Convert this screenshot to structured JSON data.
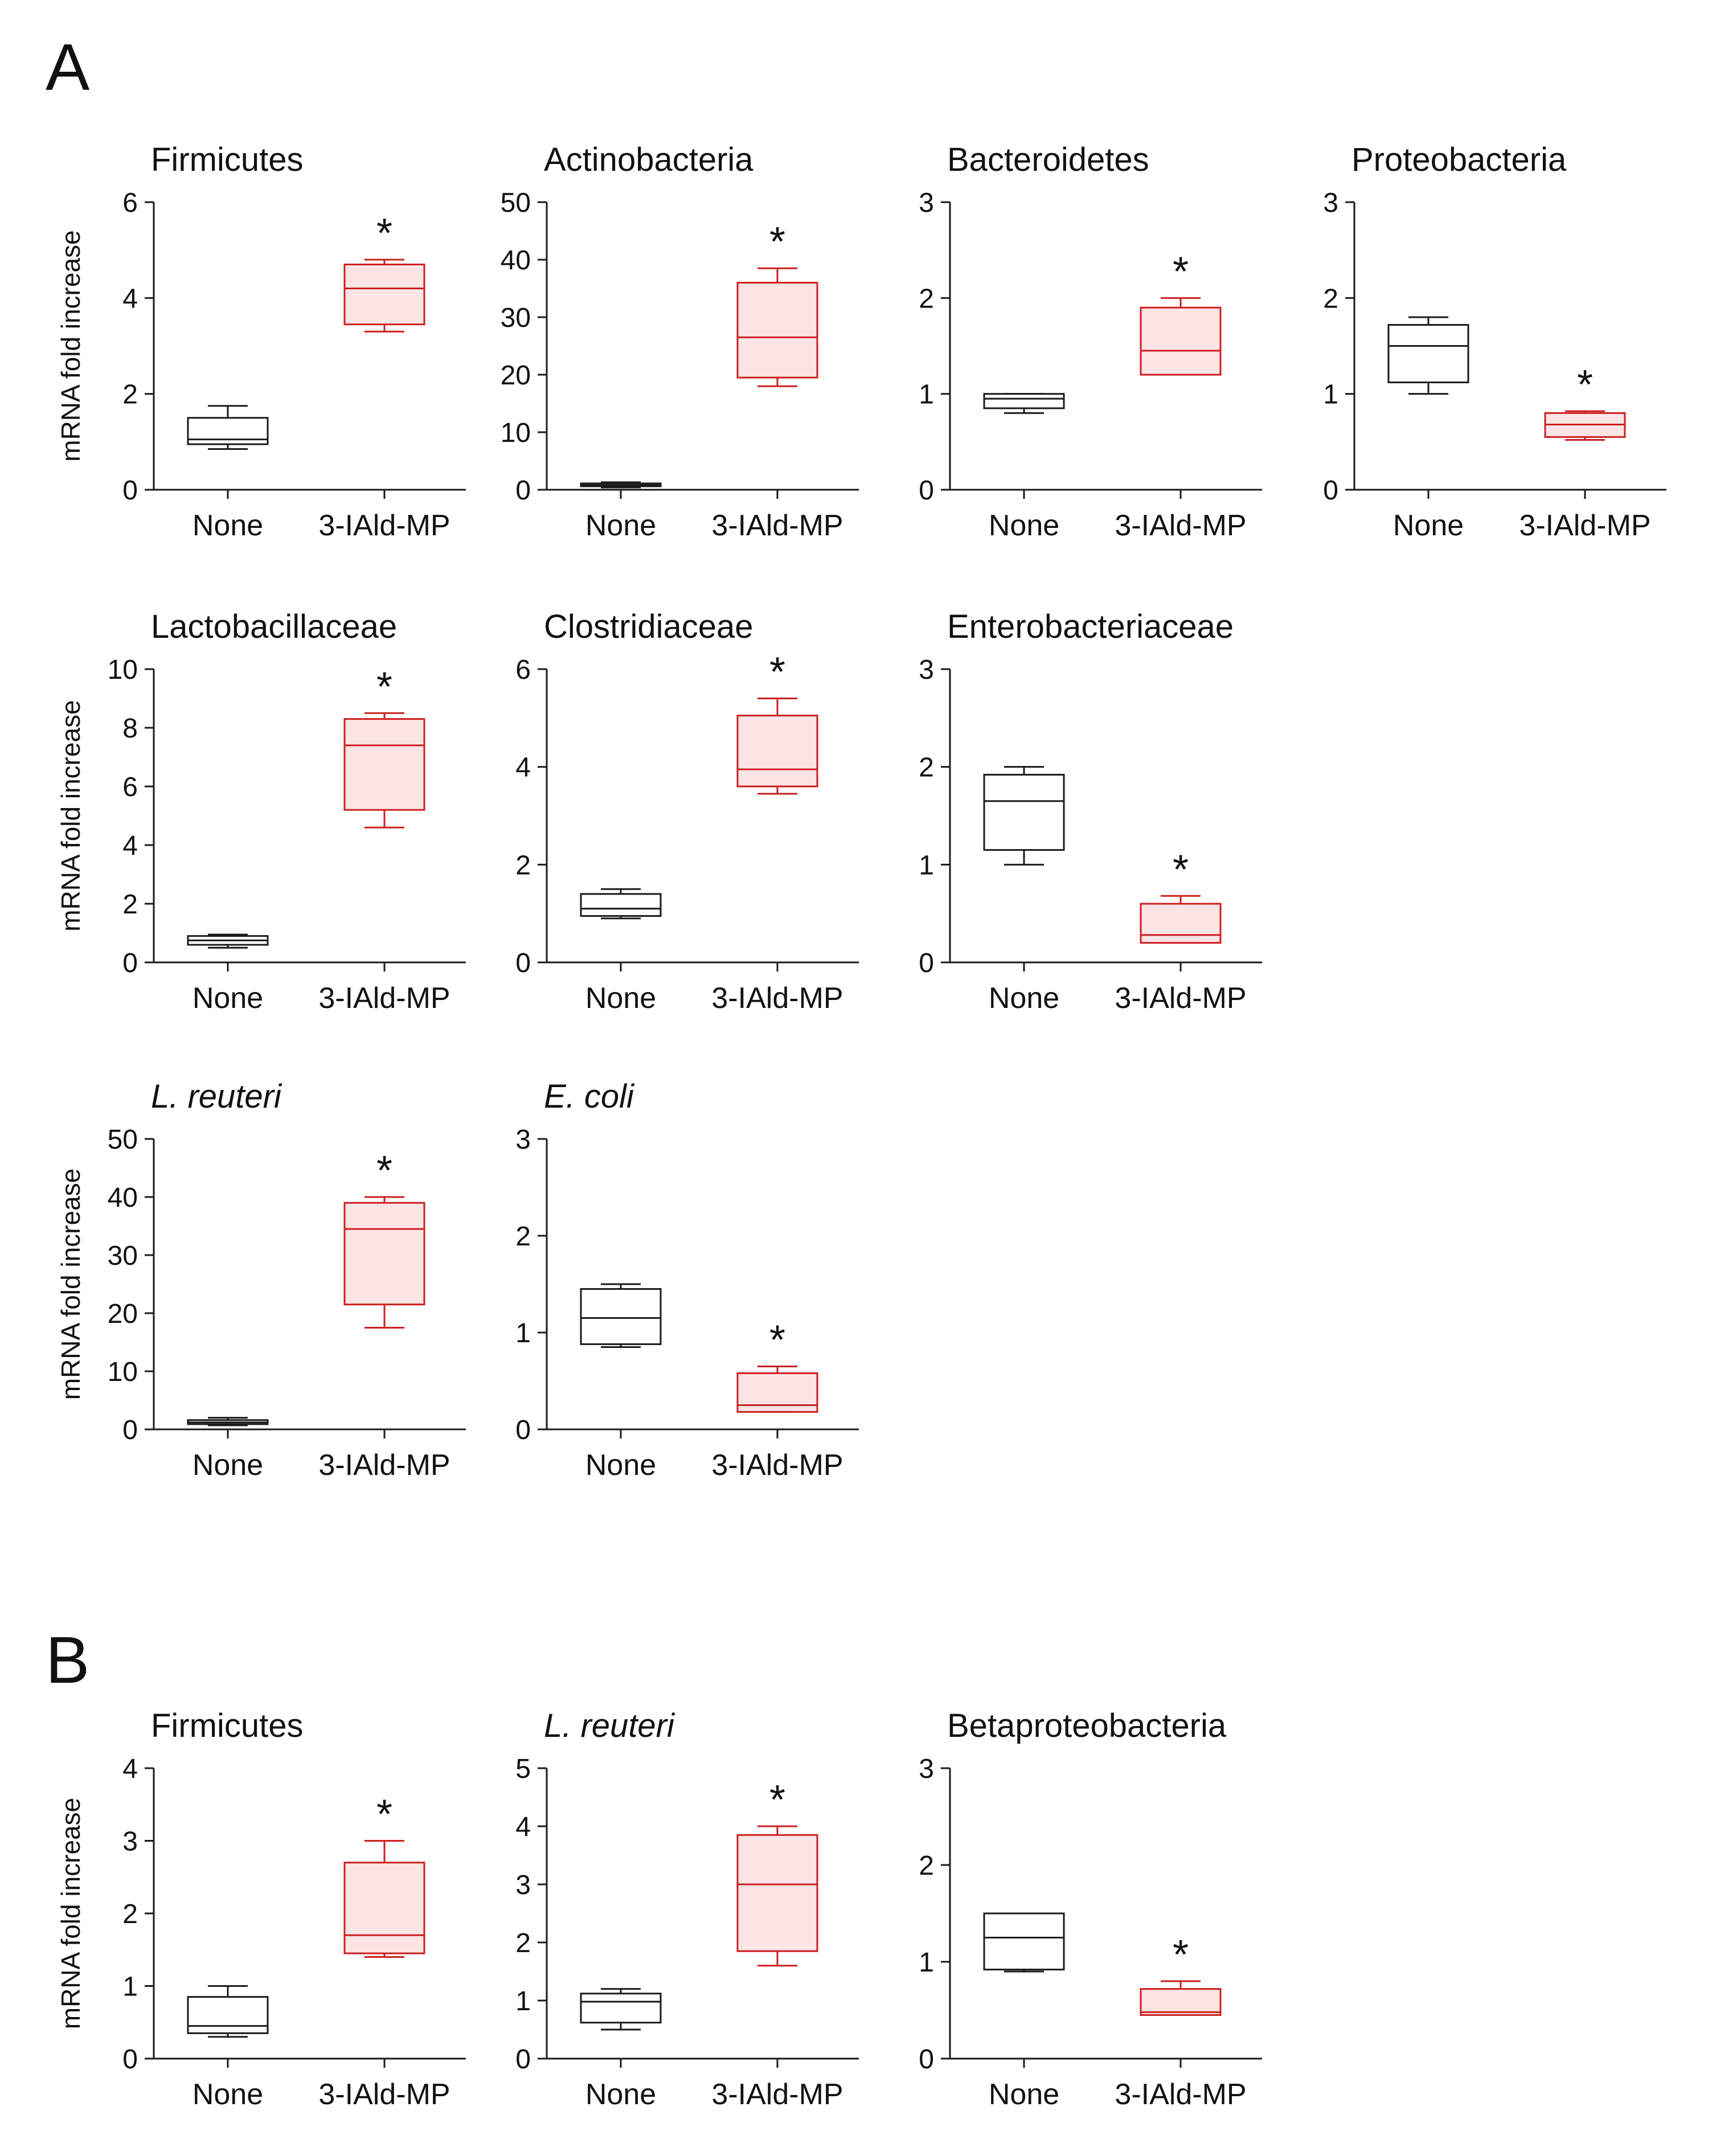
{
  "panels": [
    {
      "label": "A"
    },
    {
      "label": "B"
    }
  ],
  "colors": {
    "control": "#1a1a1a",
    "treated": "#cc1f1f",
    "treated_fill": "#fde4e5",
    "axis": "#1a1a1a"
  },
  "chart_data": [
    {
      "type": "box",
      "panel": "A",
      "title": "Firmicutes",
      "italic": false,
      "ylabel": "mRNA fold increase",
      "ylim": [
        0,
        6
      ],
      "yticks": [
        0,
        2,
        4,
        6
      ],
      "categories": [
        "None",
        "3-IAld-MP"
      ],
      "series": [
        {
          "name": "None",
          "whisker_low": 0.85,
          "q1": 0.95,
          "median": 1.05,
          "q3": 1.5,
          "whisker_high": 1.75
        },
        {
          "name": "3-IAld-MP",
          "whisker_low": 3.3,
          "q1": 3.45,
          "median": 4.2,
          "q3": 4.7,
          "whisker_high": 4.8
        }
      ],
      "significance": [
        {
          "category": "3-IAld-MP",
          "mark": "*"
        }
      ]
    },
    {
      "type": "box",
      "panel": "A",
      "title": "Actinobacteria",
      "italic": false,
      "ylabel": "",
      "ylim": [
        0,
        50
      ],
      "yticks": [
        0,
        10,
        20,
        30,
        40,
        50
      ],
      "categories": [
        "None",
        "3-IAld-MP"
      ],
      "series": [
        {
          "name": "None",
          "whisker_low": 0.4,
          "q1": 0.6,
          "median": 0.8,
          "q3": 1.1,
          "whisker_high": 1.3
        },
        {
          "name": "3-IAld-MP",
          "whisker_low": 18,
          "q1": 19.5,
          "median": 26.5,
          "q3": 36,
          "whisker_high": 38.5
        }
      ],
      "significance": [
        {
          "category": "3-IAld-MP",
          "mark": "*"
        }
      ]
    },
    {
      "type": "box",
      "panel": "A",
      "title": "Bacteroidetes",
      "italic": false,
      "ylabel": "",
      "ylim": [
        0,
        3
      ],
      "yticks": [
        0,
        1,
        2,
        3
      ],
      "categories": [
        "None",
        "3-IAld-MP"
      ],
      "series": [
        {
          "name": "None",
          "whisker_low": 0.8,
          "q1": 0.85,
          "median": 0.95,
          "q3": 1.0,
          "whisker_high": 1.0
        },
        {
          "name": "3-IAld-MP",
          "whisker_low": 1.2,
          "q1": 1.2,
          "median": 1.45,
          "q3": 1.9,
          "whisker_high": 2.0
        }
      ],
      "significance": [
        {
          "category": "3-IAld-MP",
          "mark": "*"
        }
      ]
    },
    {
      "type": "box",
      "panel": "A",
      "title": "Proteobacteria",
      "italic": false,
      "ylabel": "",
      "ylim": [
        0,
        3
      ],
      "yticks": [
        0,
        1,
        2,
        3
      ],
      "categories": [
        "None",
        "3-IAld-MP"
      ],
      "series": [
        {
          "name": "None",
          "whisker_low": 1.0,
          "q1": 1.12,
          "median": 1.5,
          "q3": 1.72,
          "whisker_high": 1.8
        },
        {
          "name": "3-IAld-MP",
          "whisker_low": 0.52,
          "q1": 0.55,
          "median": 0.68,
          "q3": 0.8,
          "whisker_high": 0.82
        }
      ],
      "significance": [
        {
          "category": "3-IAld-MP",
          "mark": "*"
        }
      ]
    },
    {
      "type": "box",
      "panel": "A",
      "title": "Lactobacillaceae",
      "italic": false,
      "ylabel": "mRNA fold increase",
      "ylim": [
        0,
        10
      ],
      "yticks": [
        0,
        2,
        4,
        6,
        8,
        10
      ],
      "categories": [
        "None",
        "3-IAld-MP"
      ],
      "series": [
        {
          "name": "None",
          "whisker_low": 0.5,
          "q1": 0.6,
          "median": 0.75,
          "q3": 0.9,
          "whisker_high": 0.95
        },
        {
          "name": "3-IAld-MP",
          "whisker_low": 4.6,
          "q1": 5.2,
          "median": 7.4,
          "q3": 8.3,
          "whisker_high": 8.5
        }
      ],
      "significance": [
        {
          "category": "3-IAld-MP",
          "mark": "*"
        }
      ]
    },
    {
      "type": "box",
      "panel": "A",
      "title": "Clostridiaceae",
      "italic": false,
      "ylabel": "",
      "ylim": [
        0,
        6
      ],
      "yticks": [
        0,
        2,
        4,
        6
      ],
      "categories": [
        "None",
        "3-IAld-MP"
      ],
      "series": [
        {
          "name": "None",
          "whisker_low": 0.9,
          "q1": 0.95,
          "median": 1.1,
          "q3": 1.4,
          "whisker_high": 1.5
        },
        {
          "name": "3-IAld-MP",
          "whisker_low": 3.45,
          "q1": 3.6,
          "median": 3.95,
          "q3": 5.05,
          "whisker_high": 5.4
        }
      ],
      "significance": [
        {
          "category": "3-IAld-MP",
          "mark": "*"
        }
      ]
    },
    {
      "type": "box",
      "panel": "A",
      "title": "Enterobacteriaceae",
      "italic": false,
      "ylabel": "",
      "ylim": [
        0,
        3
      ],
      "yticks": [
        0,
        1,
        2,
        3
      ],
      "categories": [
        "None",
        "3-IAld-MP"
      ],
      "series": [
        {
          "name": "None",
          "whisker_low": 1.0,
          "q1": 1.15,
          "median": 1.65,
          "q3": 1.92,
          "whisker_high": 2.0
        },
        {
          "name": "3-IAld-MP",
          "whisker_low": 0.2,
          "q1": 0.2,
          "median": 0.28,
          "q3": 0.6,
          "whisker_high": 0.68
        }
      ],
      "significance": [
        {
          "category": "3-IAld-MP",
          "mark": "*"
        }
      ]
    },
    {
      "type": "box",
      "panel": "A",
      "title": "L. reuteri",
      "italic": true,
      "ylabel": "mRNA fold increase",
      "ylim": [
        0,
        50
      ],
      "yticks": [
        0,
        10,
        20,
        30,
        40,
        50
      ],
      "categories": [
        "None",
        "3-IAld-MP"
      ],
      "series": [
        {
          "name": "None",
          "whisker_low": 0.7,
          "q1": 0.9,
          "median": 1.2,
          "q3": 1.6,
          "whisker_high": 2.0
        },
        {
          "name": "3-IAld-MP",
          "whisker_low": 17.5,
          "q1": 21.5,
          "median": 34.5,
          "q3": 39,
          "whisker_high": 40
        }
      ],
      "significance": [
        {
          "category": "3-IAld-MP",
          "mark": "*"
        }
      ]
    },
    {
      "type": "box",
      "panel": "A",
      "title": "E. coli",
      "italic": true,
      "ylabel": "",
      "ylim": [
        0,
        3
      ],
      "yticks": [
        0,
        1,
        2,
        3
      ],
      "categories": [
        "None",
        "3-IAld-MP"
      ],
      "series": [
        {
          "name": "None",
          "whisker_low": 0.85,
          "q1": 0.88,
          "median": 1.15,
          "q3": 1.45,
          "whisker_high": 1.5
        },
        {
          "name": "3-IAld-MP",
          "whisker_low": 0.18,
          "q1": 0.18,
          "median": 0.25,
          "q3": 0.58,
          "whisker_high": 0.65
        }
      ],
      "significance": [
        {
          "category": "3-IAld-MP",
          "mark": "*"
        }
      ]
    },
    {
      "type": "box",
      "panel": "B",
      "title": "Firmicutes",
      "italic": false,
      "ylabel": "mRNA fold increase",
      "ylim": [
        0,
        4
      ],
      "yticks": [
        0,
        1,
        2,
        3,
        4
      ],
      "categories": [
        "None",
        "3-IAld-MP"
      ],
      "series": [
        {
          "name": "None",
          "whisker_low": 0.3,
          "q1": 0.35,
          "median": 0.45,
          "q3": 0.85,
          "whisker_high": 1.0
        },
        {
          "name": "3-IAld-MP",
          "whisker_low": 1.4,
          "q1": 1.45,
          "median": 1.7,
          "q3": 2.7,
          "whisker_high": 3.0
        }
      ],
      "significance": [
        {
          "category": "3-IAld-MP",
          "mark": "*"
        }
      ]
    },
    {
      "type": "box",
      "panel": "B",
      "title": "L. reuteri",
      "italic": true,
      "ylabel": "",
      "ylim": [
        0,
        5
      ],
      "yticks": [
        0,
        1,
        2,
        3,
        4,
        5
      ],
      "categories": [
        "None",
        "3-IAld-MP"
      ],
      "series": [
        {
          "name": "None",
          "whisker_low": 0.5,
          "q1": 0.62,
          "median": 0.98,
          "q3": 1.12,
          "whisker_high": 1.2
        },
        {
          "name": "3-IAld-MP",
          "whisker_low": 1.6,
          "q1": 1.85,
          "median": 3.0,
          "q3": 3.85,
          "whisker_high": 4.0
        }
      ],
      "significance": [
        {
          "category": "3-IAld-MP",
          "mark": "*"
        }
      ]
    },
    {
      "type": "box",
      "panel": "B",
      "title": "Betaproteobacteria",
      "italic": false,
      "ylabel": "",
      "ylim": [
        0,
        3
      ],
      "yticks": [
        0,
        1,
        2,
        3
      ],
      "categories": [
        "None",
        "3-IAld-MP"
      ],
      "series": [
        {
          "name": "None",
          "whisker_low": 0.9,
          "q1": 0.92,
          "median": 1.25,
          "q3": 1.5,
          "whisker_high": 1.5
        },
        {
          "name": "3-IAld-MP",
          "whisker_low": 0.45,
          "q1": 0.45,
          "median": 0.48,
          "q3": 0.72,
          "whisker_high": 0.8
        }
      ],
      "significance": [
        {
          "category": "3-IAld-MP",
          "mark": "*"
        }
      ]
    }
  ]
}
